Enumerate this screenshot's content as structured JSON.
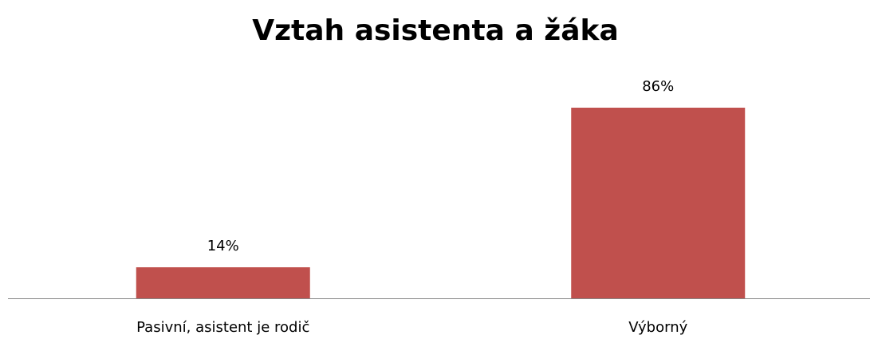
{
  "chart_data": {
    "type": "bar",
    "title": "Vztah asistenta a žáka",
    "categories": [
      "Pasivní, asistent je rodič",
      "Výborný"
    ],
    "values": [
      14,
      86
    ],
    "value_labels": [
      "14%",
      "86%"
    ],
    "color": "#c0504d"
  }
}
